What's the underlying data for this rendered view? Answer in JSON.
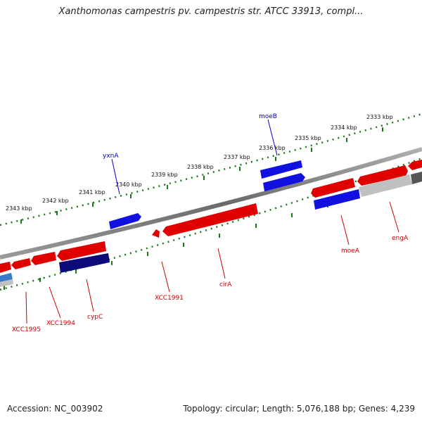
{
  "title": "Xanthomonas campestris pv. campestris str. ATCC 33913, compl...",
  "footer": {
    "accession": "Accession: NC_003902",
    "topology": "Topology: circular; Length: 5,076,188 bp; Genes: 4,239"
  },
  "scale_labels": [
    "2343 kbp",
    "2342 kbp",
    "2341 kbp",
    "2340 kbp",
    "2339 kbp",
    "2338 kbp",
    "2337 kbp",
    "2336 kbp",
    "2335 kbp",
    "2334 kbp",
    "2333 kbp"
  ],
  "gene_labels": {
    "yxnA": "yxnA",
    "moeB": "moeB",
    "XCC1995": "XCC1995",
    "XCC1994": "XCC1994",
    "cypC": "cypC",
    "XCC1991": "XCC1991",
    "cirA": "cirA",
    "moeA": "moeA",
    "engA": "engA"
  },
  "colors": {
    "forward_strand": "#e00000",
    "reverse_strand": "#1010e0",
    "dark_reverse": "#0a0a78",
    "backbone": "#7a7a7a",
    "tick": "#1a7a1a"
  }
}
